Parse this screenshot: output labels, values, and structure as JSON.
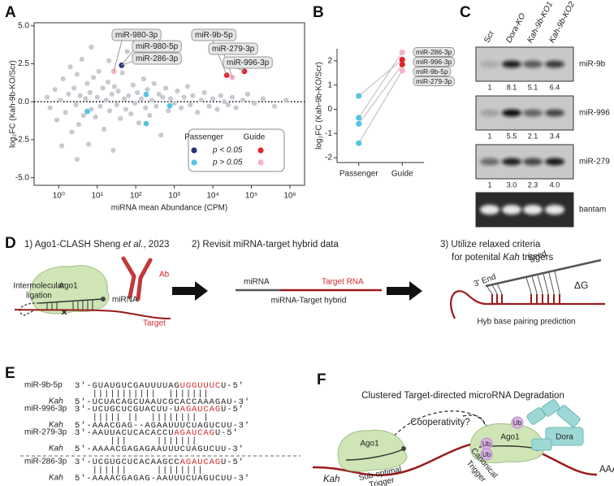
{
  "panel_labels": [
    "A",
    "B",
    "C",
    "D",
    "E",
    "F"
  ],
  "chart_data": [
    {
      "type": "scatter",
      "ylabel": "log₂FC  (Kah-9b-KO/Scr)",
      "xlabel": "miRNA mean Abundance (CPM)",
      "xscale": "log",
      "xlim": [
        0.23,
        2400000
      ],
      "ylim": [
        -5.5,
        5.2
      ],
      "xticks": [
        {
          "value": 1,
          "label": "10⁰"
        },
        {
          "value": 10,
          "label": "10¹"
        },
        {
          "value": 100,
          "label": "10²"
        },
        {
          "value": 1000,
          "label": "10³"
        },
        {
          "value": 10000,
          "label": "10⁴"
        },
        {
          "value": 100000,
          "label": "10⁵"
        },
        {
          "value": 1000000,
          "label": "10⁶"
        }
      ],
      "yticks": [
        {
          "value": 5,
          "label": "5.0"
        },
        2.5,
        {
          "value": 0,
          "label": "0.0"
        },
        -2.5,
        {
          "value": -5,
          "label": "-5.0"
        }
      ],
      "reference_line": 0,
      "legend": {
        "columns": [
          "Passenger",
          "Guide"
        ],
        "rows": [
          "p < 0.05",
          "p > 0.05"
        ]
      },
      "series": [
        {
          "color": "#c8cad2",
          "x": [
            0.5,
            0.6,
            0.8,
            0.9,
            1.1,
            1.3,
            1.5,
            1.8,
            2,
            2.2,
            2.5,
            2.8,
            3,
            3.3,
            3.6,
            4,
            4.4,
            5,
            5.5,
            6,
            6.5,
            7,
            8,
            9,
            10,
            11,
            12,
            14,
            15,
            17,
            19,
            21,
            24,
            26,
            28,
            32,
            35,
            40,
            45,
            50,
            55,
            60,
            65,
            75,
            85,
            95,
            110,
            120,
            140,
            160,
            180,
            200,
            230,
            260,
            300,
            340,
            400,
            450,
            500,
            600,
            700,
            800,
            1000,
            1200,
            1500,
            1800,
            2200,
            2600,
            3000,
            4000,
            5000,
            6000,
            8000,
            10000,
            13000,
            16000,
            20000,
            25000,
            32000,
            40000,
            60000,
            80000,
            120000,
            200000,
            400000,
            800000,
            3,
            1.2,
            20,
            7
          ],
          "y": [
            0.3,
            -0.4,
            0.8,
            -1.2,
            0.1,
            1.5,
            -0.7,
            0.5,
            2.3,
            -2.0,
            0.9,
            -0.2,
            1.8,
            -1.5,
            0.4,
            2.8,
            -0.9,
            0.2,
            1.2,
            -2.8,
            0.6,
            -0.5,
            1.6,
            -1.0,
            0.3,
            2.0,
            -0.3,
            0.9,
            -1.8,
            0.1,
            1.3,
            -0.6,
            0.5,
            -3.2,
            1.0,
            -0.2,
            0.7,
            -1.1,
            1.9,
            0.2,
            -0.5,
            3.3,
            0.4,
            -0.8,
            1.1,
            -0.1,
            0.6,
            -1.4,
            0.2,
            1.5,
            -0.4,
            0.8,
            -0.9,
            0.1,
            1.2,
            -0.3,
            0.5,
            -2.2,
            0.3,
            0.9,
            -0.6,
            0.2,
            -0.1,
            0.7,
            -0.4,
            0.3,
            1.0,
            -0.2,
            0.4,
            -0.7,
            0.1,
            0.6,
            -0.3,
            0.2,
            -0.5,
            0.4,
            0.0,
            -0.2,
            0.3,
            -0.4,
            0.1,
            0.5,
            -0.1,
            0.2,
            -0.3,
            0.1,
            -3.8,
            -2.9,
            2.7,
            3.6
          ]
        },
        {
          "color": "#2a2e7c",
          "x": [
            43
          ],
          "y": [
            2.4
          ]
        },
        {
          "color": "#e0262c",
          "x": [
            23000,
            66000
          ],
          "y": [
            1.75,
            2.0
          ]
        },
        {
          "color": "#56c5e3",
          "x": [
            5.5,
            186,
            186,
            760
          ],
          "y": [
            -0.64,
            0.48,
            -1.44,
            -0.27
          ]
        },
        {
          "color": "#f5b3c6",
          "x": [
            27,
            32000
          ],
          "y": [
            2.0,
            1.6
          ]
        }
      ],
      "annotations": [
        "miR-980-3p",
        "miR-980-5p",
        "miR-286-3p",
        "miR-9b-5p",
        "miR-279-3p",
        "miR-996-3p"
      ]
    },
    {
      "type": "paired",
      "ylabel": "log₂FC (Kah-9b-KO/Scr)",
      "categories": [
        "Passenger",
        "Guide"
      ],
      "ylim": [
        -2.2,
        2.5
      ],
      "yticks": [
        -2,
        -1,
        0,
        1,
        2
      ],
      "line_color": "#b9b9b9",
      "series": [
        {
          "name": "miR-286-3p",
          "values": [
            -0.35,
            2.35
          ],
          "colors": [
            "#56c5e3",
            "#f5b3c6"
          ]
        },
        {
          "name": "miR-996-3p",
          "values": [
            0.55,
            2.05
          ],
          "colors": [
            "#56c5e3",
            "#e0262c"
          ]
        },
        {
          "name": "miR-9b-5p",
          "values": [
            -0.6,
            1.85
          ],
          "colors": [
            "#56c5e3",
            "#e0262c"
          ]
        },
        {
          "name": "miR-279-3p",
          "values": [
            -1.4,
            1.6
          ],
          "colors": [
            "#56c5e3",
            "#f5b3c6"
          ]
        }
      ]
    }
  ],
  "blot": {
    "columns": [
      "Scr",
      "Dora-KO",
      "Kah-9b-KO1",
      "Kah-9b-KO2"
    ],
    "rows": [
      {
        "name": "miR-9b",
        "quant": [
          "1",
          "8.1",
          "5.1",
          "6.4"
        ]
      },
      {
        "name": "miR-996",
        "quant": [
          "1",
          "5.5",
          "2.1",
          "3.4"
        ]
      },
      {
        "name": "miR-279",
        "quant": [
          "1",
          "3.0",
          "2.3",
          "4.0"
        ]
      },
      {
        "name": "bantam"
      }
    ]
  },
  "panel_d": {
    "step1": [
      "1) Ago1-CLASH Sheng ",
      "et al.",
      ", 2023"
    ],
    "step2": "2) Revisit miRNA-target hybrid data",
    "step3": [
      "3) Utilize relaxed criteria",
      "for potenital ",
      "Kah",
      " triggers"
    ],
    "ligation": [
      "Intermolecular",
      "ligation"
    ],
    "ago1": "Ago1",
    "ab": "Ab",
    "mirna": "miRNA",
    "target": "Target",
    "hybrid_mirna": "miRNA",
    "hybrid_target": "Target RNA",
    "hybrid": "miRNA-Target hybrid",
    "end3": "3' End",
    "seed": "Seed",
    "dg": "ΔG",
    "prediction": "Hyb base pairing prediction"
  },
  "alignments": [
    {
      "mirna": "miR-9b-5p",
      "mirna_seq": [
        "3'-GUAUGUCGAUUUUAG",
        "UGGUUUC",
        "U-5'"
      ],
      "pairing": "   |||||||||||  |||||||",
      "target": "Kah",
      "target_seq": "5'-UCUACAGCUAAUCGCACCAAAGAU-3'"
    },
    {
      "mirna": "miR-996-3p",
      "mirna_seq": [
        "3'-UCUGCUCGUACUU-U",
        "AGAUCAG",
        "U-5'"
      ],
      "pairing": "   ||||| ||  |||||||| |",
      "target": "Kah",
      "target_seq": "5'-AAACGAG--AGAAUUUCUAGUCUU-3'"
    },
    {
      "mirna": "miR-279-3p",
      "mirna_seq": [
        "3'-AAUUACUCACACCU",
        "AGAUCAG",
        "U-5'"
      ],
      "pairing": "      |||     |||||||",
      "target": "Kah",
      "target_seq": "5'-AAAACGAGAGAAUUUCUAGUCUU-3'"
    },
    {
      "mirna": "miR-286-3p",
      "mirna_seq": [
        "3'-UCGUGCUCACAAGCC",
        "AGAUCAG",
        "U-5'"
      ],
      "pairing": "   ||||||     ||||||||",
      "target": "Kah",
      "target_seq": "5'-AAAACGAGAG-AAUUUCUAGUCUU-3'"
    }
  ],
  "panel_f": {
    "title": "Clustered Target-directed microRNA Degradation",
    "question": "Cooperativity?",
    "ub": [
      "Ub",
      "Ub",
      "Ub"
    ],
    "dora": "Dora",
    "ago1": [
      "Ago1",
      "Ago1"
    ],
    "trigger1": [
      "Sub-optimal",
      "Trigger"
    ],
    "trigger2": [
      "Canonical",
      "Trigger"
    ],
    "rna": "Kah",
    "polya": "AAA"
  }
}
